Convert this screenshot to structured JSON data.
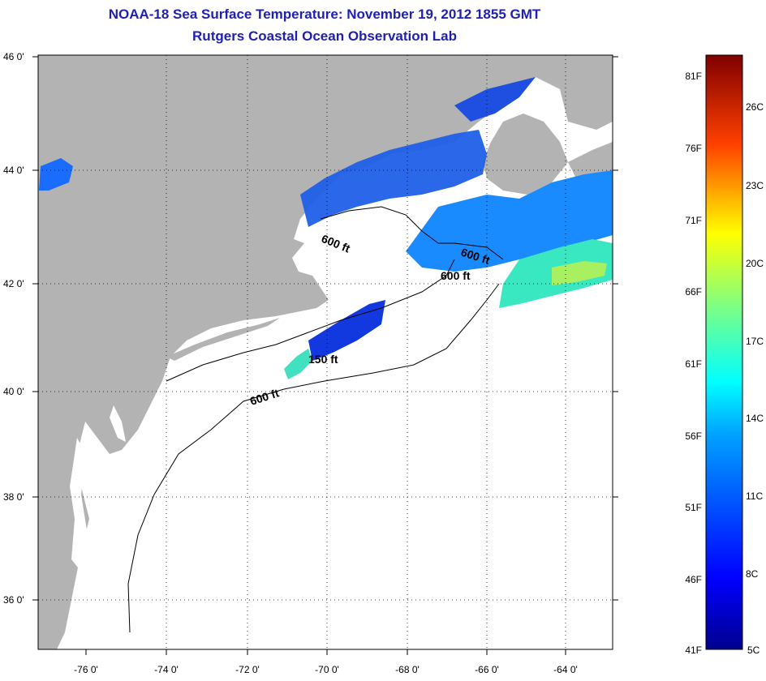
{
  "title": "NOAA-18 Sea Surface Temperature:  November 19, 2012 1855 GMT",
  "subtitle": "Rutgers Coastal Ocean Observation Lab",
  "map": {
    "lat_labels": [
      "46 0'",
      "44 0'",
      "42 0'",
      "40 0'",
      "38 0'",
      "36 0'"
    ],
    "lon_labels": [
      "-76 0'",
      "-74 0'",
      "-72 0'",
      "-70 0'",
      "-68 0'",
      "-66 0'",
      "-64 0'"
    ],
    "contour_labels": [
      "600 ft",
      "600 ft",
      "600 ft",
      "150 ft",
      "600 ft"
    ],
    "land_color": "#b3b3b3",
    "water_color": "#ffffff",
    "grid": "dotted"
  },
  "colorbar": {
    "fahrenheit_labels": [
      "81F",
      "76F",
      "71F",
      "66F",
      "61F",
      "56F",
      "51F",
      "46F",
      "41F"
    ],
    "celsius_labels": [
      "26C",
      "23C",
      "20C",
      "17C",
      "14C",
      "11C",
      "8C",
      "5C"
    ],
    "range_f": [
      41,
      81
    ],
    "colormap": "jet"
  }
}
